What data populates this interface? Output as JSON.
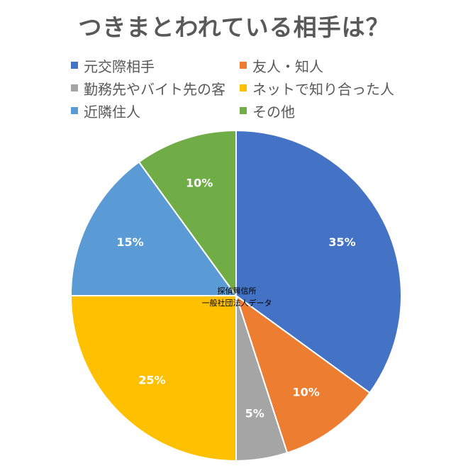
{
  "chart_data": {
    "type": "pie",
    "title": "つきまとわれている相手は？",
    "categories": [
      "元交際相手",
      "友人・知人",
      "勤務先やバイト先の客",
      "ネットで知り合った人",
      "近隣住人",
      "その他"
    ],
    "values": [
      35,
      10,
      5,
      25,
      15,
      10
    ],
    "labels": [
      "35%",
      "10%",
      "5%",
      "25%",
      "15%",
      "10%"
    ],
    "colors": [
      "#4472C4",
      "#ED7D31",
      "#A5A5A5",
      "#FFC000",
      "#5B9BD5",
      "#70AD47"
    ],
    "legend_position": "top",
    "center_annotation": [
      "探偵興信所",
      "一般社団法人データ"
    ]
  }
}
